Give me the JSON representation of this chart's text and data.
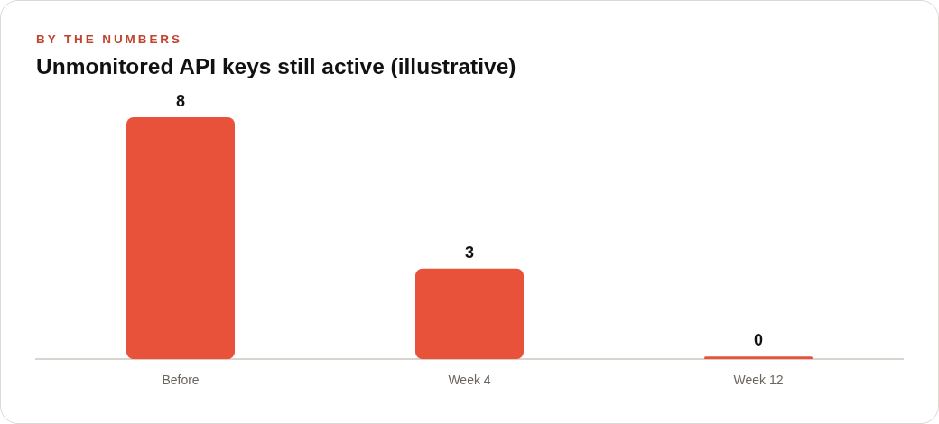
{
  "chart_data": {
    "type": "bar",
    "subtitle": "BY THE NUMBERS",
    "title": "Unmonitored API keys still active (illustrative)",
    "categories": [
      "Before",
      "Week 4",
      "Week 12"
    ],
    "values": [
      8,
      3,
      0
    ],
    "color": "#e8513a",
    "data_labels": true,
    "tick_labels": "x"
  }
}
